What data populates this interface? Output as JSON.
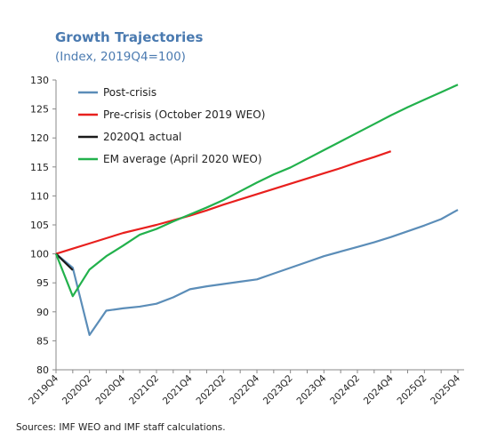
{
  "chart_data": {
    "type": "line",
    "title": "Growth Trajectories",
    "subtitle": "(Index, 2019Q4=100)",
    "source": "Sources: IMF WEO and IMF staff calculations.",
    "categories": [
      "2019Q4",
      null,
      "2020Q2",
      null,
      "2020Q4",
      null,
      "2021Q2",
      null,
      "2021Q4",
      null,
      "2022Q2",
      null,
      "2022Q4",
      null,
      "2023Q2",
      null,
      "2023Q4",
      null,
      "2024Q2",
      null,
      "2024Q4",
      null,
      "2025Q2",
      null,
      "2025Q4"
    ],
    "ylim": [
      80,
      130
    ],
    "yticks": [
      80,
      85,
      90,
      95,
      100,
      105,
      110,
      115,
      120,
      125,
      130
    ],
    "grid": false,
    "legend": "upper left",
    "series": [
      {
        "name": "Post-crisis",
        "color": "#5b8db8",
        "values": [
          100,
          97.6,
          86,
          90.2,
          90.6,
          90.9,
          91.4,
          92.5,
          93.9,
          94.4,
          94.8,
          95.2,
          95.6,
          96.6,
          97.6,
          98.6,
          99.6,
          100.4,
          101.2,
          102,
          102.9,
          103.9,
          104.9,
          106,
          107.6
        ]
      },
      {
        "name": "Pre-crisis (October 2019 WEO)",
        "color": "#e8201e",
        "values": [
          100,
          100.9,
          101.8,
          102.7,
          103.6,
          104.3,
          105.0,
          105.8,
          106.6,
          107.5,
          108.5,
          109.4,
          110.3,
          111.2,
          112.1,
          113.0,
          113.9,
          114.8,
          115.8,
          116.7,
          117.7,
          null,
          null,
          null,
          null
        ]
      },
      {
        "name": "2020Q1 actual",
        "color": "#1a1a1a",
        "values": [
          100,
          97.2,
          null,
          null,
          null,
          null,
          null,
          null,
          null,
          null,
          null,
          null,
          null,
          null,
          null,
          null,
          null,
          null,
          null,
          null,
          null,
          null,
          null,
          null,
          null
        ]
      },
      {
        "name": "EM average (April 2020 WEO)",
        "color": "#22b14c",
        "values": [
          100,
          92.7,
          97.3,
          99.6,
          101.4,
          103.3,
          104.3,
          105.6,
          106.8,
          108.0,
          109.3,
          110.8,
          112.3,
          113.7,
          114.9,
          116.4,
          117.9,
          119.4,
          120.9,
          122.4,
          123.9,
          125.3,
          126.6,
          127.9,
          129.2
        ]
      }
    ]
  }
}
